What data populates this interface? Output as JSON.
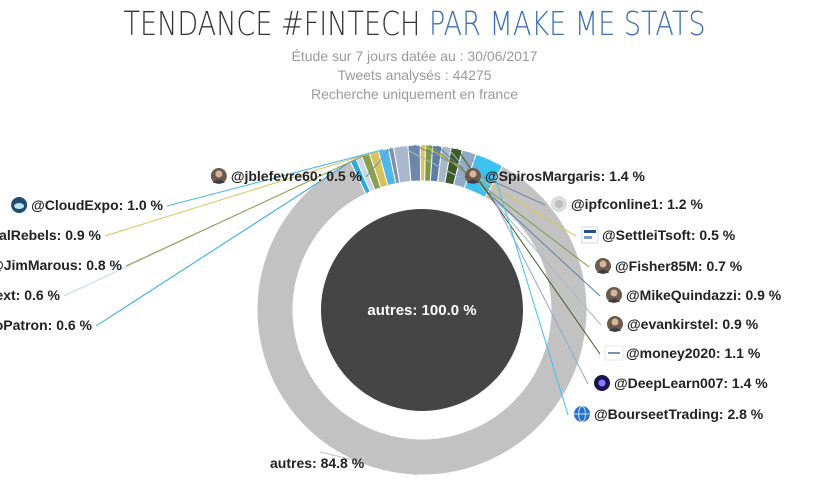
{
  "header": {
    "title_main": "TENDANCE #FINTECH ",
    "title_accent": "PAR MAKE ME STATS",
    "subtitle_1": "Étude sur 7 jours datée au : 30/06/2017",
    "subtitle_2": "Tweets analysés : 44275",
    "subtitle_3": "Recherche uniquement en france"
  },
  "chart_data": {
    "type": "pie",
    "variant": "nested-donut",
    "title": "TENDANCE #FINTECH PAR MAKE ME STATS",
    "inner": [
      {
        "label": "autres",
        "value": 100.0,
        "display": "autres: 100.0 %",
        "color": "#454545"
      }
    ],
    "outer": [
      {
        "label": "@jblefevre60",
        "value": 0.5,
        "display": ": 0.5 %",
        "color": "#7f8fae",
        "icon": "avatar-photo-icon"
      },
      {
        "label": "@SpirosMargaris",
        "value": 1.4,
        "display": ": 1.4 %",
        "color": "#a9b8cc",
        "icon": "avatar-photo-icon"
      },
      {
        "label": "@ipfconline1",
        "value": 1.2,
        "display": ": 1.2 %",
        "color": "#6d87a8",
        "icon": "avatar-ipfc-icon"
      },
      {
        "label": "@SettleiTsoft",
        "value": 0.5,
        "display": ": 0.5 %",
        "color": "#e0c34a",
        "icon": "avatar-settle-icon"
      },
      {
        "label": "@Fisher85M",
        "value": 0.7,
        "display": ": 0.7 %",
        "color": "#7a9a4a",
        "icon": "avatar-photo-icon"
      },
      {
        "label": "@MikeQuindazzi",
        "value": 0.9,
        "display": ": 0.9 %",
        "color": "#5d7fa6",
        "icon": "avatar-photo-icon"
      },
      {
        "label": "@evankirstel",
        "value": 0.9,
        "display": ": 0.9 %",
        "color": "#a8b7c6",
        "icon": "avatar-photo-icon"
      },
      {
        "label": "@money2020",
        "value": 1.1,
        "display": ": 1.1 %",
        "color": "#3d5a2a",
        "icon": "avatar-money-icon"
      },
      {
        "label": "@DeepLearn007",
        "value": 1.4,
        "display": ": 1.4 %",
        "color": "#8fa9c6",
        "icon": "avatar-galaxy-icon"
      },
      {
        "label": "@BourseetTrading",
        "value": 2.8,
        "display": ": 2.8 %",
        "color": "#3cc2ef",
        "icon": "avatar-globe-icon"
      },
      {
        "label": "autres",
        "value": 84.8,
        "display": "autres: 84.8 %",
        "color": "#c2c2c2"
      },
      {
        "label": "@CryptoPatron",
        "value": 0.6,
        "display": ": 0.6 %",
        "color": "#2faadd",
        "icon": "avatar-crypto-icon"
      },
      {
        "label": "@JacBurns_Comext",
        "value": 0.6,
        "display": ": 0.6 %",
        "color": "#c6d9ea",
        "icon": "avatar-sketch-icon"
      },
      {
        "label": "@JimMarous",
        "value": 0.8,
        "display": ": 0.8 %",
        "color": "#8aa04c",
        "icon": "avatar-photo-icon"
      },
      {
        "label": "@OttLegalRebels",
        "value": 0.9,
        "display": ": 0.9 %",
        "color": "#d8c25a",
        "icon": "avatar-photo-icon"
      },
      {
        "label": "@CloudExpo",
        "value": 1.0,
        "display": ": 1.0 %",
        "color": "#4fb8e8",
        "icon": "avatar-cloud-icon"
      }
    ]
  }
}
